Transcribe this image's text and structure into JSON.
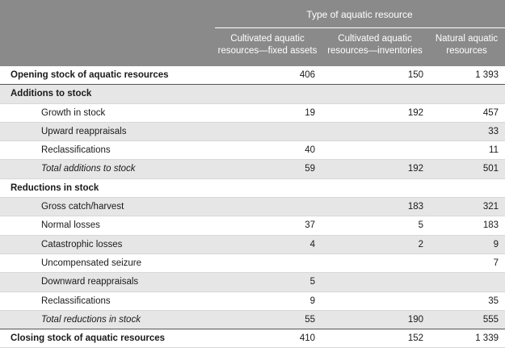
{
  "header": {
    "group_title": "Type of aquatic resource",
    "columns": [
      "Cultivated aquatic\nresources—fixed assets",
      "Cultivated aquatic\nresources—inventories",
      "Natural aquatic\nresources"
    ]
  },
  "rows": [
    {
      "label": "Opening stock of aquatic resources",
      "style": "bold",
      "shade": false,
      "strong": true,
      "values": [
        "406",
        "150",
        "1 393"
      ]
    },
    {
      "label": "Additions to stock",
      "style": "bold",
      "shade": true,
      "strong": false,
      "values": [
        "",
        "",
        ""
      ]
    },
    {
      "label": "Growth in stock",
      "style": "indent",
      "shade": false,
      "strong": false,
      "values": [
        "19",
        "192",
        "457"
      ]
    },
    {
      "label": "Upward reappraisals",
      "style": "indent",
      "shade": true,
      "strong": false,
      "values": [
        "",
        "",
        "33"
      ]
    },
    {
      "label": "Reclassifications",
      "style": "indent",
      "shade": false,
      "strong": false,
      "values": [
        "40",
        "",
        "11"
      ]
    },
    {
      "label": "Total additions to stock",
      "style": "indent-italic",
      "shade": true,
      "strong": false,
      "values": [
        "59",
        "192",
        "501"
      ]
    },
    {
      "label": "Reductions in stock",
      "style": "bold",
      "shade": false,
      "strong": false,
      "values": [
        "",
        "",
        ""
      ]
    },
    {
      "label": "Gross catch/harvest",
      "style": "indent",
      "shade": true,
      "strong": false,
      "values": [
        "",
        "183",
        "321"
      ]
    },
    {
      "label": "Normal losses",
      "style": "indent",
      "shade": false,
      "strong": false,
      "values": [
        "37",
        "5",
        "183"
      ]
    },
    {
      "label": "Catastrophic losses",
      "style": "indent",
      "shade": true,
      "strong": false,
      "values": [
        "4",
        "2",
        "9"
      ]
    },
    {
      "label": "Uncompensated seizure",
      "style": "indent",
      "shade": false,
      "strong": false,
      "values": [
        "",
        "",
        "7"
      ]
    },
    {
      "label": "Downward reappraisals",
      "style": "indent",
      "shade": true,
      "strong": false,
      "values": [
        "5",
        "",
        ""
      ]
    },
    {
      "label": "Reclassifications",
      "style": "indent",
      "shade": false,
      "strong": false,
      "values": [
        "9",
        "",
        "35"
      ]
    },
    {
      "label": "Total reductions in stock",
      "style": "indent-italic",
      "shade": true,
      "strong": true,
      "values": [
        "55",
        "190",
        "555"
      ]
    },
    {
      "label": "Closing stock of aquatic resources",
      "style": "bold",
      "shade": false,
      "strong": false,
      "values": [
        "410",
        "152",
        "1 339"
      ]
    }
  ]
}
